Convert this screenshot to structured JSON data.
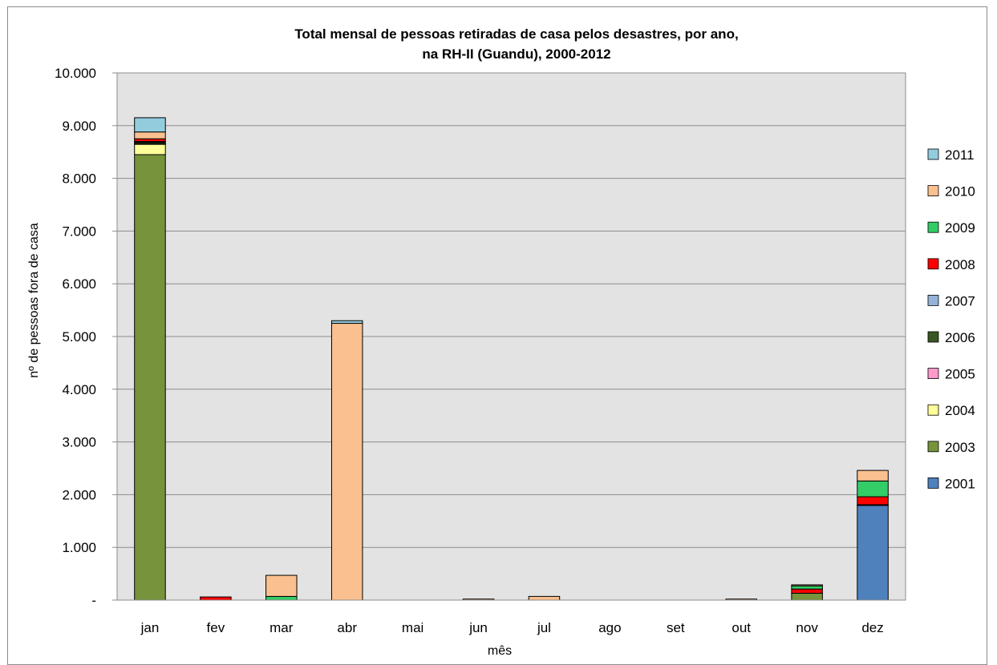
{
  "chart_data": {
    "type": "bar",
    "stacked": true,
    "title": "Total mensal de pessoas  retiradas de casa pelos desastres, por ano,",
    "subtitle": "na RH-II (Guandu), 2000-2012",
    "xlabel": "mês",
    "ylabel": "nº de pessoas fora de casa",
    "ylim": [
      0,
      10000
    ],
    "yticks": [
      "-",
      "1.000",
      "2.000",
      "3.000",
      "4.000",
      "5.000",
      "6.000",
      "7.000",
      "8.000",
      "9.000",
      "10.000"
    ],
    "grid": true,
    "legend_position": "right",
    "categories": [
      "jan",
      "fev",
      "mar",
      "abr",
      "mai",
      "jun",
      "jul",
      "ago",
      "set",
      "out",
      "nov",
      "dez"
    ],
    "series": [
      {
        "name": "2001",
        "color": "#4f81bd",
        "values": [
          0,
          0,
          0,
          0,
          0,
          0,
          0,
          0,
          0,
          0,
          0,
          1800
        ]
      },
      {
        "name": "2003",
        "color": "#77933c",
        "values": [
          8450,
          0,
          0,
          0,
          0,
          0,
          0,
          0,
          0,
          0,
          130,
          0
        ]
      },
      {
        "name": "2004",
        "color": "#ffff99",
        "values": [
          200,
          0,
          0,
          0,
          0,
          0,
          0,
          0,
          0,
          0,
          0,
          0
        ]
      },
      {
        "name": "2005",
        "color": "#ff99cc",
        "values": [
          10,
          0,
          0,
          0,
          0,
          0,
          0,
          0,
          0,
          0,
          0,
          0
        ]
      },
      {
        "name": "2006",
        "color": "#375623",
        "values": [
          30,
          0,
          0,
          0,
          0,
          0,
          0,
          0,
          0,
          0,
          0,
          10
        ]
      },
      {
        "name": "2007",
        "color": "#95b3d7",
        "values": [
          10,
          0,
          0,
          0,
          0,
          0,
          0,
          0,
          0,
          0,
          0,
          0
        ]
      },
      {
        "name": "2008",
        "color": "#ff0000",
        "values": [
          50,
          60,
          0,
          0,
          0,
          0,
          0,
          0,
          0,
          0,
          80,
          150
        ]
      },
      {
        "name": "2009",
        "color": "#33cc66",
        "values": [
          0,
          0,
          70,
          0,
          0,
          0,
          0,
          0,
          0,
          0,
          60,
          300
        ]
      },
      {
        "name": "2010",
        "color": "#fac090",
        "values": [
          130,
          0,
          400,
          5250,
          0,
          20,
          70,
          0,
          0,
          20,
          20,
          200
        ]
      },
      {
        "name": "2011",
        "color": "#93cddd",
        "values": [
          270,
          0,
          0,
          50,
          0,
          0,
          0,
          0,
          0,
          0,
          0,
          0
        ]
      }
    ]
  }
}
